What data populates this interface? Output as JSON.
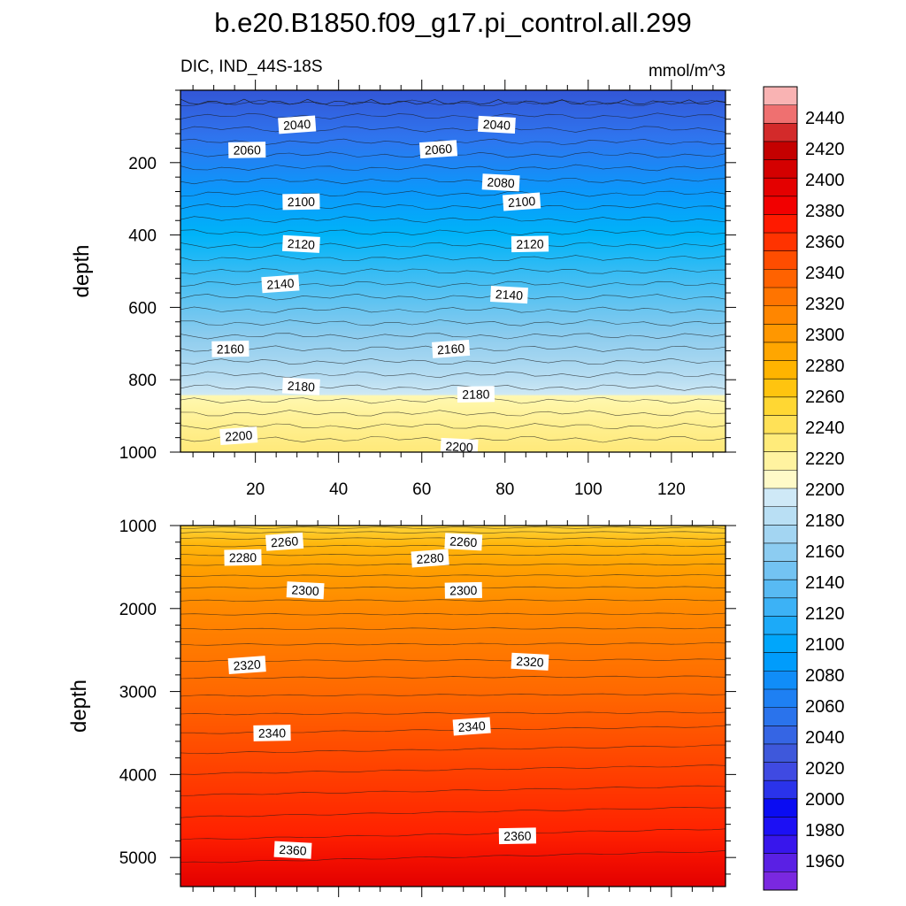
{
  "chart_data": {
    "type": "contour",
    "title": "b.e20.B1850.f09_g17.pi_control.all.299",
    "subtitle_left": "DIC, IND_44S-18S",
    "subtitle_right": "mmol/m^3",
    "x": {
      "range": [
        2,
        133
      ],
      "ticks": [
        20,
        40,
        60,
        80,
        100,
        120
      ]
    },
    "panels": [
      {
        "name": "upper",
        "ylabel": "depth",
        "ylim": [
          0,
          1000
        ],
        "yticks": [
          200,
          400,
          600,
          800,
          1000
        ],
        "contour_levels": [
          2040,
          2060,
          2080,
          2100,
          2120,
          2140,
          2160,
          2180,
          2200,
          2220
        ],
        "contour_labels": [
          {
            "value": "2040",
            "x": 30,
            "y": 95
          },
          {
            "value": "2040",
            "x": 78,
            "y": 95
          },
          {
            "value": "2060",
            "x": 18,
            "y": 165
          },
          {
            "value": "2060",
            "x": 64,
            "y": 163
          },
          {
            "value": "2080",
            "x": 79,
            "y": 255
          },
          {
            "value": "2100",
            "x": 31,
            "y": 308
          },
          {
            "value": "2100",
            "x": 84,
            "y": 308
          },
          {
            "value": "2120",
            "x": 31,
            "y": 425
          },
          {
            "value": "2120",
            "x": 86,
            "y": 425
          },
          {
            "value": "2140",
            "x": 26,
            "y": 535
          },
          {
            "value": "2140",
            "x": 81,
            "y": 565
          },
          {
            "value": "2160",
            "x": 14,
            "y": 715
          },
          {
            "value": "2160",
            "x": 67,
            "y": 715
          },
          {
            "value": "2180",
            "x": 31,
            "y": 818
          },
          {
            "value": "2180",
            "x": 73,
            "y": 840
          },
          {
            "value": "2200",
            "x": 16,
            "y": 955
          },
          {
            "value": "2200",
            "x": 69,
            "y": 985
          }
        ]
      },
      {
        "name": "lower",
        "ylabel": "depth",
        "ylim": [
          1000,
          5350
        ],
        "yticks": [
          1000,
          2000,
          3000,
          4000,
          5000
        ],
        "contour_levels": [
          2260,
          2280,
          2300,
          2320,
          2340,
          2360
        ],
        "contour_labels": [
          {
            "value": "2260",
            "x": 27,
            "y": 1195
          },
          {
            "value": "2260",
            "x": 70,
            "y": 1195
          },
          {
            "value": "2280",
            "x": 17,
            "y": 1385
          },
          {
            "value": "2280",
            "x": 62,
            "y": 1395
          },
          {
            "value": "2300",
            "x": 32,
            "y": 1780
          },
          {
            "value": "2300",
            "x": 70,
            "y": 1780
          },
          {
            "value": "2320",
            "x": 18,
            "y": 2680
          },
          {
            "value": "2320",
            "x": 86,
            "y": 2640
          },
          {
            "value": "2340",
            "x": 24,
            "y": 3500
          },
          {
            "value": "2340",
            "x": 72,
            "y": 3420
          },
          {
            "value": "2360",
            "x": 29,
            "y": 4910
          },
          {
            "value": "2360",
            "x": 83,
            "y": 4740
          }
        ]
      }
    ],
    "colorbar": {
      "labels": [
        "2440",
        "2420",
        "2400",
        "2380",
        "2360",
        "2340",
        "2320",
        "2300",
        "2280",
        "2260",
        "2240",
        "2220",
        "2200",
        "2180",
        "2160",
        "2140",
        "2120",
        "2100",
        "2080",
        "2060",
        "2040",
        "2020",
        "2000",
        "1980",
        "1960"
      ],
      "colors_top_to_bottom": [
        "#F9B3B3",
        "#EF7070",
        "#D32A2A",
        "#C40000",
        "#D40000",
        "#E40000",
        "#F20000",
        "#FF1A00",
        "#FF3300",
        "#FF4D00",
        "#FF6200",
        "#FF7400",
        "#FF8600",
        "#FF9700",
        "#FFA600",
        "#FFB400",
        "#FFC40F",
        "#FFD733",
        "#FFE157",
        "#FFEB7A",
        "#FFF3A0",
        "#FFFAC8",
        "#CFE9F7",
        "#B9DFF4",
        "#A3D5F2",
        "#8CCCF1",
        "#73C3F2",
        "#58BAF3",
        "#3CB2F6",
        "#1CAAF8",
        "#00A6FB",
        "#009CFC",
        "#108DF8",
        "#1E80F3",
        "#2A73EC",
        "#3565E4",
        "#3E58DB",
        "#3F4AE2",
        "#2A33EA",
        "#0A0CF2",
        "#1C10F4",
        "#3816EC",
        "#5A20E4",
        "#7A28E0"
      ]
    }
  }
}
